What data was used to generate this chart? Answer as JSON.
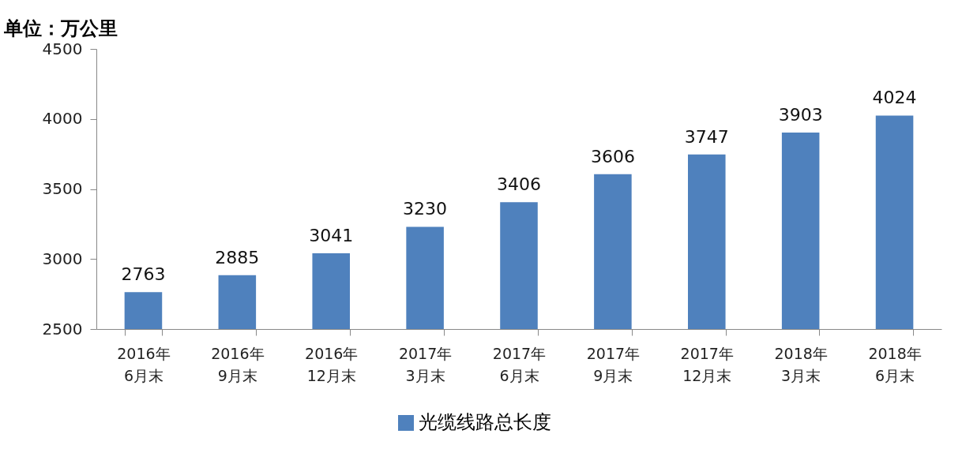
{
  "chart_data": {
    "type": "bar",
    "ylabel": "单位：万公里",
    "categories": [
      "2016年\n6月末",
      "2016年\n9月末",
      "2016年\n12月末",
      "2017年\n3月末",
      "2017年\n6月末",
      "2017年\n9月末",
      "2017年\n12月末",
      "2018年\n3月末",
      "2018年\n6月末"
    ],
    "series": [
      {
        "name": "光缆线路总长度",
        "color": "#4f81bd",
        "values": [
          2763,
          2885,
          3041,
          3230,
          3406,
          3606,
          3747,
          3903,
          4024
        ]
      }
    ],
    "ylim": [
      2500,
      4500
    ],
    "yticks": [
      2500,
      3000,
      3500,
      4000,
      4500
    ],
    "grid": false,
    "legend": "bottom",
    "data_labels": true
  }
}
